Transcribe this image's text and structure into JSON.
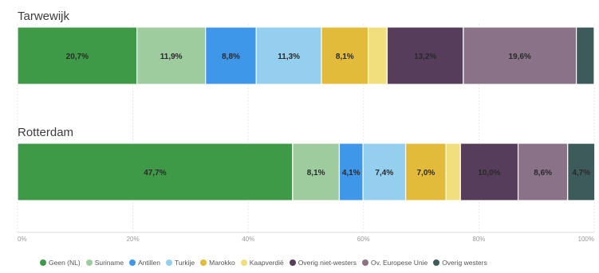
{
  "chart_data": {
    "type": "bar",
    "orientation": "horizontal",
    "stacked": true,
    "percent_scale": true,
    "categories": [
      "Tarwewijk",
      "Rotterdam"
    ],
    "series": [
      {
        "name": "Geen (NL)",
        "color": "#3f9a48",
        "values": [
          20.7,
          47.7
        ],
        "labels": [
          "20,7%",
          "47,7%"
        ]
      },
      {
        "name": "Suriname",
        "color": "#9fcc9f",
        "values": [
          11.9,
          8.1
        ],
        "labels": [
          "11,9%",
          "8,1%"
        ]
      },
      {
        "name": "Antillen",
        "color": "#3f97e9",
        "values": [
          8.8,
          4.1
        ],
        "labels": [
          "8,8%",
          "4,1%"
        ]
      },
      {
        "name": "Turkije",
        "color": "#95cfef",
        "values": [
          11.3,
          7.4
        ],
        "labels": [
          "11,3%",
          "7,4%"
        ]
      },
      {
        "name": "Marokko",
        "color": "#e3bb3a",
        "values": [
          8.1,
          7.0
        ],
        "labels": [
          "8,1%",
          "7,0%"
        ]
      },
      {
        "name": "Kaapverdië",
        "color": "#f1df7e",
        "values": [
          3.3,
          2.5
        ],
        "labels": [
          "",
          ""
        ]
      },
      {
        "name": "Overig niet-westers",
        "color": "#553d5b",
        "values": [
          13.2,
          10.0
        ],
        "labels": [
          "13,2%",
          "10,0%"
        ]
      },
      {
        "name": "Ov. Europese Unie",
        "color": "#8a7288",
        "values": [
          19.6,
          8.6
        ],
        "labels": [
          "19,6%",
          "8,6%"
        ]
      },
      {
        "name": "Overig westers",
        "color": "#3e5b5b",
        "values": [
          3.1,
          4.7
        ],
        "labels": [
          "",
          "4,7%"
        ]
      }
    ],
    "xlim": [
      0,
      100
    ],
    "ticks": [
      "0%",
      "20%",
      "40%",
      "60%",
      "80%",
      "100%"
    ],
    "grid": true,
    "legend_position": "bottom"
  }
}
